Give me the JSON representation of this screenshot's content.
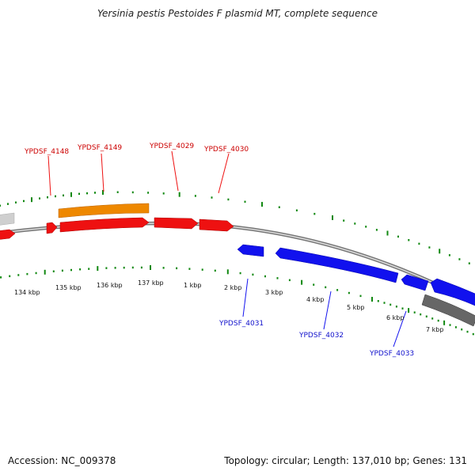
{
  "title": "Yersinia pestis Pestoides F plasmid MT, complete sequence",
  "footer": {
    "accession": "Accession: NC_009378",
    "summary": "Topology: circular; Length: 137,010 bp; Genes: 131"
  },
  "scale_labels": [
    "134 kbp",
    "135 kbp",
    "136 kbp",
    "137 kbp",
    "1 kbp",
    "2 kbp",
    "3 kbp",
    "4 kbp",
    "5 kbp",
    "6 kbp",
    "7 kbp"
  ],
  "genes_forward": [
    "YPDSF_4148",
    "YPDSF_4149",
    "YPDSF_4029",
    "YPDSF_4030"
  ],
  "genes_reverse": [
    "YPDSF_4031",
    "YPDSF_4032",
    "YPDSF_4033"
  ],
  "colors": {
    "forward": "#ee1111",
    "reverse": "#1111ee",
    "orange": "#ee8800",
    "gray": "#777777",
    "tick": "#118811",
    "backbone": "#888888"
  }
}
